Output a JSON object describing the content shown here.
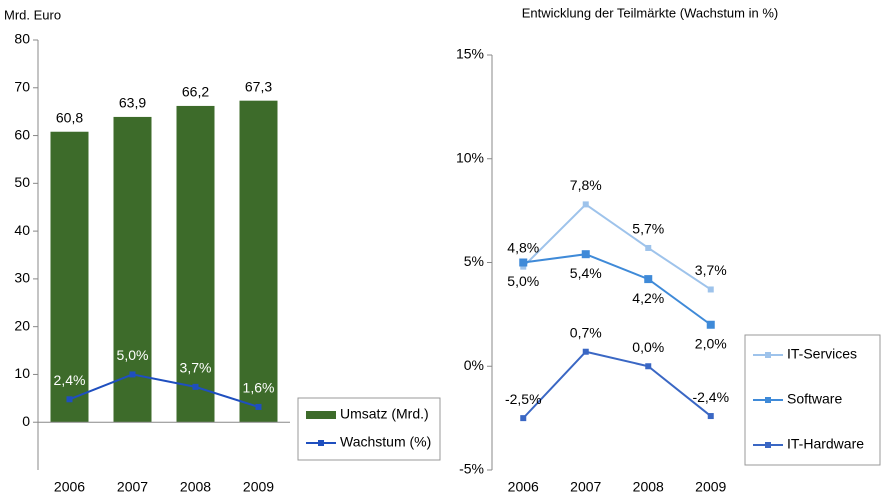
{
  "chart_data": [
    {
      "type": "bar",
      "ylabel": "Mrd. Euro",
      "categories": [
        "2006",
        "2007",
        "2008",
        "2009"
      ],
      "series": [
        {
          "name": "Umsatz (Mrd.)",
          "color": "#3d6b2a",
          "values": [
            60.8,
            63.9,
            66.2,
            67.3
          ],
          "value_labels": [
            "60,8",
            "63,9",
            "66,2",
            "67,3"
          ]
        },
        {
          "name": "Wachstum (%)",
          "type": "line",
          "axis": "y2",
          "color": "#1f4fbf",
          "values": [
            2.4,
            5.0,
            3.7,
            1.6
          ],
          "value_labels": [
            "2,4%",
            "5,0%",
            "3,7%",
            "1,6%"
          ]
        }
      ],
      "ylim": [
        -10,
        80
      ],
      "yticks": [
        0,
        10,
        20,
        30,
        40,
        50,
        60,
        70,
        80
      ],
      "y2lim": [
        -5,
        40
      ],
      "legend": "right"
    },
    {
      "type": "line",
      "title": "Entwicklung der Teilmärkte (Wachstum in %)",
      "categories": [
        "2006",
        "2007",
        "2008",
        "2009"
      ],
      "series": [
        {
          "name": "IT-Services",
          "color": "#9ec3eb",
          "values": [
            4.8,
            7.8,
            5.7,
            3.7
          ],
          "value_labels": [
            "4,8%",
            "7,8%",
            "5,7%",
            "3,7%"
          ]
        },
        {
          "name": "Software",
          "color": "#3f8ad8",
          "values": [
            5.0,
            5.4,
            4.2,
            2.0
          ],
          "value_labels": [
            "5,0%",
            "5,4%",
            "4,2%",
            "2,0%"
          ]
        },
        {
          "name": "IT-Hardware",
          "color": "#3a67c4",
          "values": [
            -2.5,
            0.7,
            0.0,
            -2.4
          ],
          "value_labels": [
            "-2,5%",
            "0,7%",
            "0,0%",
            "-2,4%"
          ]
        }
      ],
      "ylim": [
        -5,
        15
      ],
      "yticks": [
        {
          "value": -5,
          "label": "-5%"
        },
        {
          "value": 0,
          "label": "0%"
        },
        {
          "value": 5,
          "label": "5%"
        },
        {
          "value": 10,
          "label": "10%"
        },
        {
          "value": 15,
          "label": "15%"
        }
      ],
      "legend": "right"
    }
  ]
}
